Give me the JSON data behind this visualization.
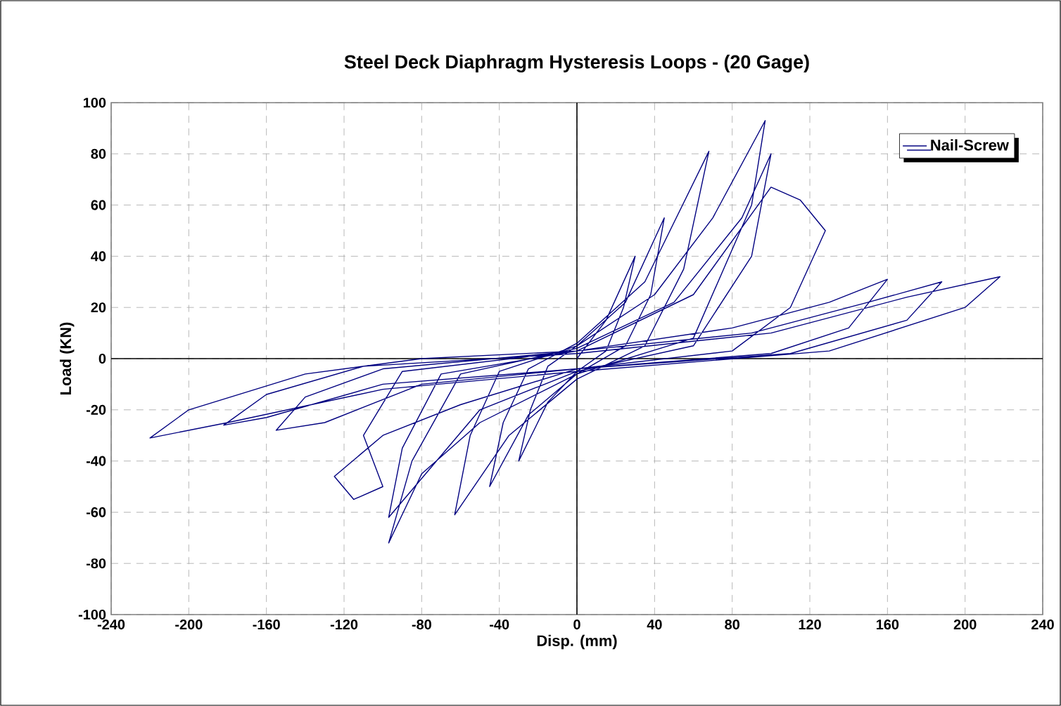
{
  "chart_data": {
    "type": "line",
    "title": "Steel Deck Diaphragm Hysteresis Loops - (20 Gage)",
    "xlabel": "Disp. (mm)",
    "ylabel": "Load (KN)",
    "xlim": [
      -240,
      240
    ],
    "xticks": [
      -240,
      -200,
      -160,
      -120,
      -80,
      -40,
      0,
      40,
      80,
      120,
      160,
      200,
      240
    ],
    "ylim": [
      -100,
      100
    ],
    "yticks": [
      -100,
      -80,
      -60,
      -40,
      -20,
      0,
      20,
      40,
      60,
      80,
      100
    ],
    "grid": true,
    "legend": "top right",
    "marker": "none",
    "line_style": "solid",
    "series": [
      {
        "name": "Nail-Screw",
        "color": "#000080",
        "x": [
          0,
          15,
          30,
          24,
          15,
          0,
          -15,
          -30,
          -24,
          -15,
          0,
          25,
          45,
          38,
          25,
          0,
          -25,
          -45,
          -38,
          -25,
          0,
          35,
          68,
          55,
          35,
          0,
          -35,
          -63,
          -55,
          -40,
          0,
          40,
          70,
          97,
          90,
          60,
          0,
          -50,
          -80,
          -97,
          -85,
          -60,
          0,
          50,
          85,
          100,
          90,
          60,
          0,
          -50,
          -97,
          -90,
          -70,
          0,
          60,
          100,
          115,
          128,
          110,
          80,
          0,
          -60,
          -100,
          -125,
          -115,
          -100,
          -110,
          -90,
          0,
          80,
          130,
          160,
          140,
          100,
          0,
          -80,
          -130,
          -155,
          -140,
          -100,
          0,
          90,
          150,
          188,
          170,
          110,
          0,
          -100,
          -160,
          -182,
          -160,
          -110,
          0,
          100,
          170,
          218,
          200,
          130,
          0,
          -100,
          -180,
          -220,
          -200,
          -140,
          -80,
          0
        ],
        "values": [
          0,
          15,
          40,
          20,
          3,
          -5,
          -17,
          -40,
          -20,
          -3,
          5,
          22,
          55,
          25,
          5,
          -6,
          -22,
          -50,
          -25,
          -4,
          6,
          30,
          81,
          35,
          5,
          -8,
          -30,
          -61,
          -30,
          -5,
          5,
          25,
          55,
          93,
          60,
          8,
          -6,
          -25,
          -45,
          -72,
          -40,
          -6,
          4,
          22,
          55,
          80,
          40,
          5,
          -5,
          -20,
          -62,
          -35,
          -6,
          3,
          25,
          67,
          62,
          50,
          20,
          3,
          -4,
          -18,
          -30,
          -46,
          -55,
          -50,
          -30,
          -5,
          3,
          12,
          22,
          31,
          12,
          2,
          -4,
          -10,
          -25,
          -28,
          -15,
          -4,
          3,
          10,
          22,
          30,
          15,
          2,
          -4,
          -10,
          -23,
          -26,
          -14,
          -3,
          2,
          10,
          24,
          32,
          20,
          3,
          -5,
          -12,
          -25,
          -31,
          -20,
          -6,
          0,
          3
        ]
      }
    ]
  }
}
